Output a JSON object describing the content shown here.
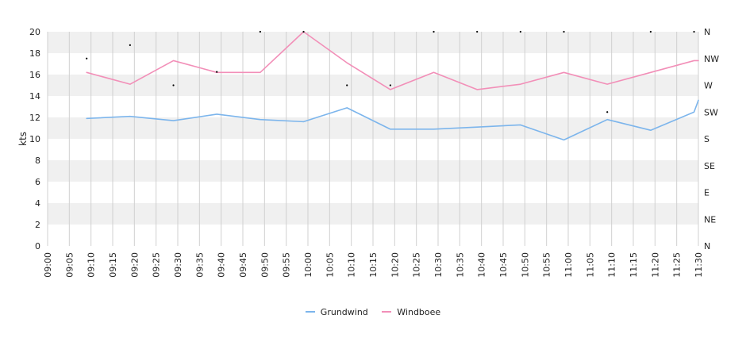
{
  "chart_data": {
    "type": "line",
    "ylabel": "kts",
    "ylim": [
      0,
      20
    ],
    "y_ticks": [
      "0",
      "2",
      "4",
      "6",
      "8",
      "10",
      "12",
      "14",
      "16",
      "18",
      "20"
    ],
    "y2_ticks": [
      "N",
      "NE",
      "E",
      "SE",
      "S",
      "SW",
      "W",
      "NW",
      "N"
    ],
    "x_ticks": [
      "09:00",
      "09:05",
      "09:10",
      "09:15",
      "09:20",
      "09:25",
      "09:30",
      "09:35",
      "09:40",
      "09:45",
      "09:50",
      "09:55",
      "10:00",
      "10:05",
      "10:10",
      "10:15",
      "10:20",
      "10:25",
      "10:30",
      "10:35",
      "10:40",
      "10:45",
      "10:50",
      "10:55",
      "11:00",
      "11:05",
      "11:10",
      "11:15",
      "11:20",
      "11:25",
      "11:30"
    ],
    "x": [
      "09:09",
      "09:19",
      "09:29",
      "09:39",
      "09:49",
      "09:59",
      "10:09",
      "10:19",
      "10:29",
      "10:39",
      "10:49",
      "10:59",
      "11:09",
      "11:19",
      "11:29",
      "11:30"
    ],
    "series": [
      {
        "name": "Grundwind",
        "color": "#7cb5ec",
        "values": [
          11.9,
          12.1,
          11.7,
          12.3,
          11.8,
          11.6,
          12.9,
          10.9,
          10.9,
          11.1,
          11.3,
          9.9,
          11.8,
          10.8,
          12.5,
          13.6
        ]
      },
      {
        "name": "Windboee",
        "color": "#f28fb8",
        "values": [
          16.2,
          15.1,
          17.3,
          16.2,
          16.2,
          20.0,
          17.1,
          14.6,
          16.2,
          14.6,
          15.1,
          16.2,
          15.1,
          16.2,
          17.3,
          17.3
        ]
      }
    ],
    "direction_markers": {
      "x": [
        "09:09",
        "09:19",
        "09:29",
        "09:39",
        "09:49",
        "09:59",
        "10:09",
        "10:19",
        "10:29",
        "10:39",
        "10:49",
        "10:59",
        "11:09",
        "11:19",
        "11:29"
      ],
      "values": [
        315,
        337.5,
        270,
        292.5,
        360,
        360,
        270,
        270,
        360,
        360,
        360,
        360,
        225,
        360,
        360
      ]
    },
    "grid": true,
    "bands": true,
    "legend_position": "bottom-center"
  }
}
